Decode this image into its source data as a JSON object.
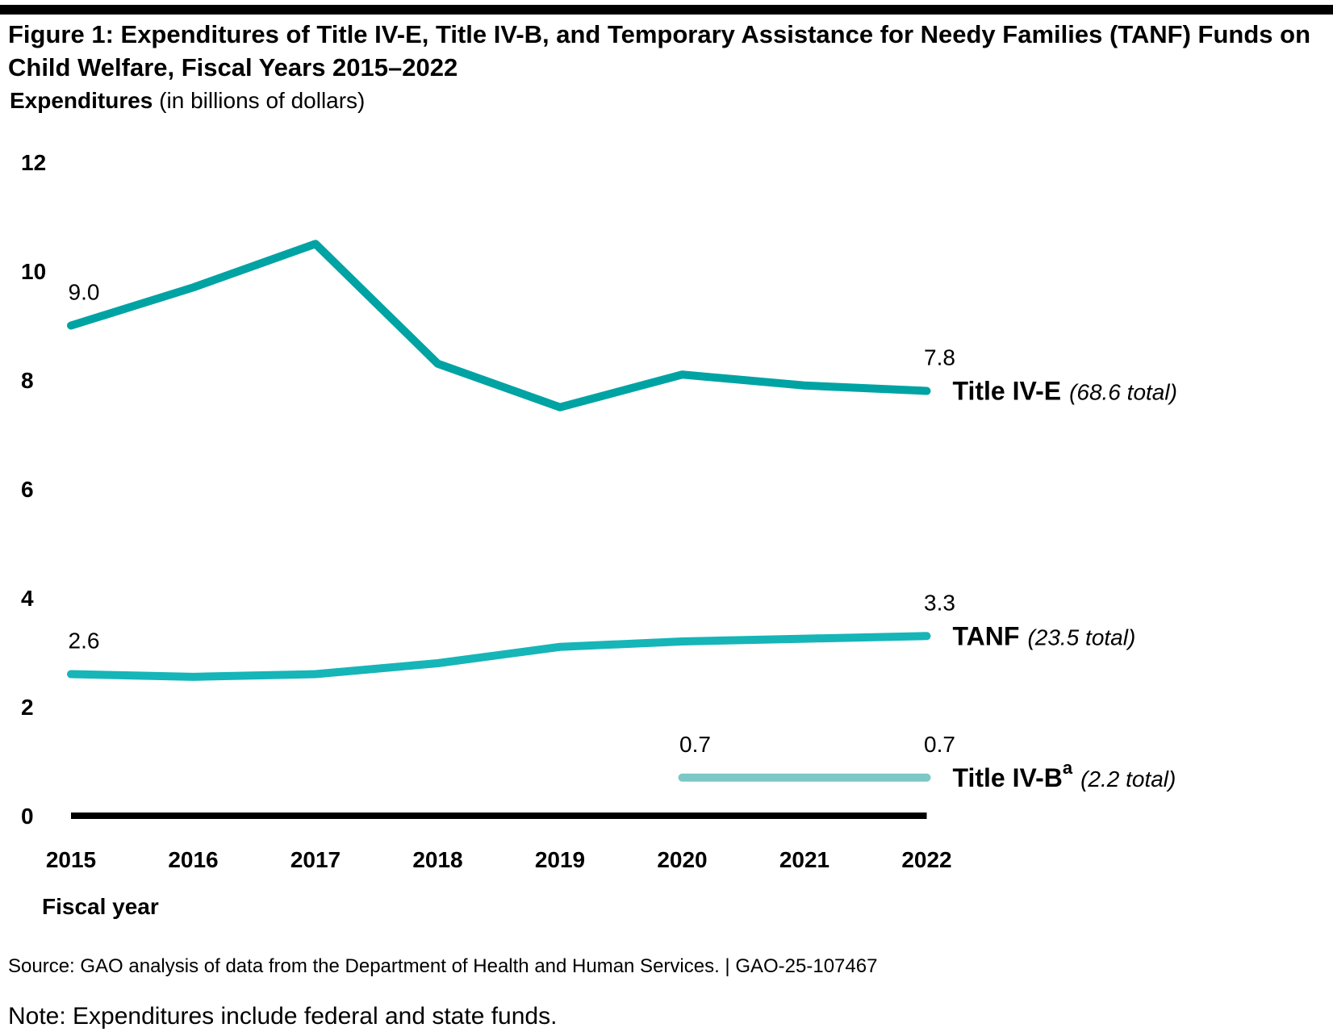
{
  "figure": {
    "title": "Figure 1: Expenditures of Title IV-E, Title IV-B, and Temporary Assistance for Needy Families (TANF) Funds on Child Welfare, Fiscal Years 2015–2022",
    "ylabel_bold": "Expenditures",
    "ylabel_rest": "(in billions of dollars)",
    "xlabel": "Fiscal year",
    "source": "Source: GAO analysis of data from the Department of Health and Human Services.  |  GAO-25-107467",
    "note": "Note: Expenditures include federal and state funds."
  },
  "chart_data": {
    "type": "line",
    "title": "Figure 1: Expenditures of Title IV-E, Title IV-B, and Temporary Assistance for Needy Families (TANF) Funds on Child Welfare, Fiscal Years 2015–2022",
    "xlabel": "Fiscal year",
    "ylabel": "Expenditures (in billions of dollars)",
    "categories": [
      "2015",
      "2016",
      "2017",
      "2018",
      "2019",
      "2020",
      "2021",
      "2022"
    ],
    "ylim": [
      0,
      12
    ],
    "yticks": [
      0,
      2,
      4,
      6,
      8,
      10,
      12
    ],
    "grid": false,
    "legend": "direct labels at line ends (right)",
    "series": [
      {
        "name": "Title IV-E",
        "total_label": "(68.6 total)",
        "color": "#00A3A3",
        "values": [
          9.0,
          9.7,
          10.5,
          8.3,
          7.5,
          8.1,
          7.9,
          7.8
        ],
        "point_labels": [
          "9.0",
          null,
          null,
          null,
          null,
          null,
          null,
          "7.8"
        ]
      },
      {
        "name": "TANF",
        "total_label": "(23.5 total)",
        "color": "#16B5B8",
        "values": [
          2.6,
          2.55,
          2.6,
          2.8,
          3.1,
          3.2,
          3.25,
          3.3
        ],
        "point_labels": [
          "2.6",
          null,
          null,
          null,
          null,
          null,
          null,
          "3.3"
        ]
      },
      {
        "name": "Title IV-B",
        "name_superscript": "a",
        "total_label": "(2.2 total)",
        "color": "#7CC8C6",
        "values": [
          null,
          null,
          null,
          null,
          null,
          0.7,
          0.7,
          0.7
        ],
        "point_labels": [
          null,
          null,
          null,
          null,
          null,
          "0.7",
          null,
          "0.7"
        ]
      }
    ]
  }
}
